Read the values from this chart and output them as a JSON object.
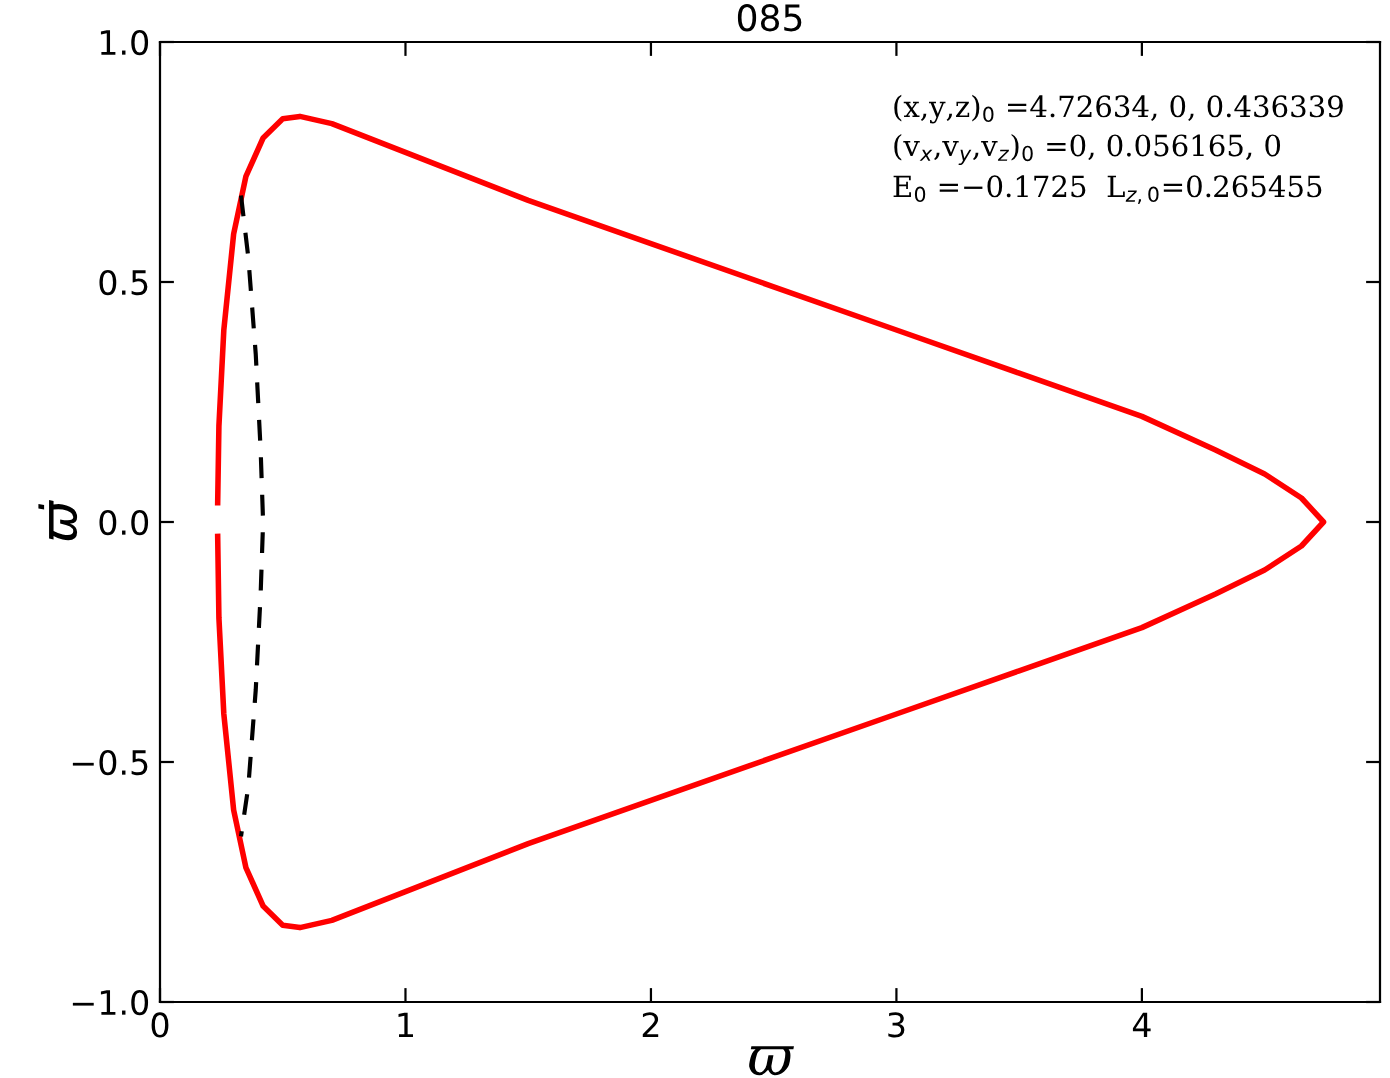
{
  "chart_data": {
    "type": "line",
    "title": "085",
    "xlabel": "ϖ",
    "ylabel": "ϖ̇",
    "xlim": [
      0,
      4.97
    ],
    "ylim": [
      -1.0,
      1.0
    ],
    "xticks": [
      0,
      1,
      2,
      3,
      4
    ],
    "yticks": [
      {
        "value": -1.0,
        "label": "−1.0"
      },
      {
        "value": -0.5,
        "label": "−0.5"
      },
      {
        "value": 0.0,
        "label": "0.0"
      },
      0.5,
      {
        "value": 1.0,
        "label": "1.0"
      }
    ],
    "grid": false,
    "legend": false,
    "marker": "none",
    "annotations": [
      "(x,y,z)$_{0}$ =4.72634, 0, 0.436339",
      "(v$_{x}$,v$_{y}$,v$_{z}$)$_{0}$ =0, 0.056165, 0",
      "E$_{0}$ =−0.1725  L$_{z,0}$=0.265455"
    ],
    "series": [
      {
        "color": "#ff0000",
        "line_style": "solid",
        "x": [
          0.235,
          0.24,
          0.26,
          0.3,
          0.35,
          0.42,
          0.5,
          0.57,
          0.7,
          1.0,
          1.5,
          2.0,
          2.5,
          3.0,
          3.5,
          4.0,
          4.3,
          4.5,
          4.65,
          4.74,
          4.65,
          4.5,
          4.3,
          4.0,
          3.5,
          3.0,
          2.5,
          2.0,
          1.5,
          1.0,
          0.7,
          0.57,
          0.5,
          0.42,
          0.35,
          0.3,
          0.26,
          0.24,
          0.235
        ],
        "values": [
          0.04,
          0.2,
          0.4,
          0.6,
          0.72,
          0.8,
          0.84,
          0.845,
          0.83,
          0.77,
          0.67,
          0.58,
          0.49,
          0.4,
          0.31,
          0.22,
          0.15,
          0.1,
          0.05,
          0.0,
          -0.05,
          -0.1,
          -0.15,
          -0.22,
          -0.31,
          -0.4,
          -0.49,
          -0.58,
          -0.67,
          -0.77,
          -0.83,
          -0.845,
          -0.84,
          -0.8,
          -0.72,
          -0.6,
          -0.4,
          -0.2,
          -0.03
        ]
      },
      {
        "color": "#000000",
        "line_style": "dashed",
        "x": [
          0.33,
          0.36,
          0.39,
          0.41,
          0.42,
          0.41,
          0.39,
          0.36,
          0.33
        ],
        "values": [
          0.68,
          0.55,
          0.35,
          0.15,
          0.0,
          -0.15,
          -0.35,
          -0.55,
          -0.655
        ]
      }
    ]
  }
}
